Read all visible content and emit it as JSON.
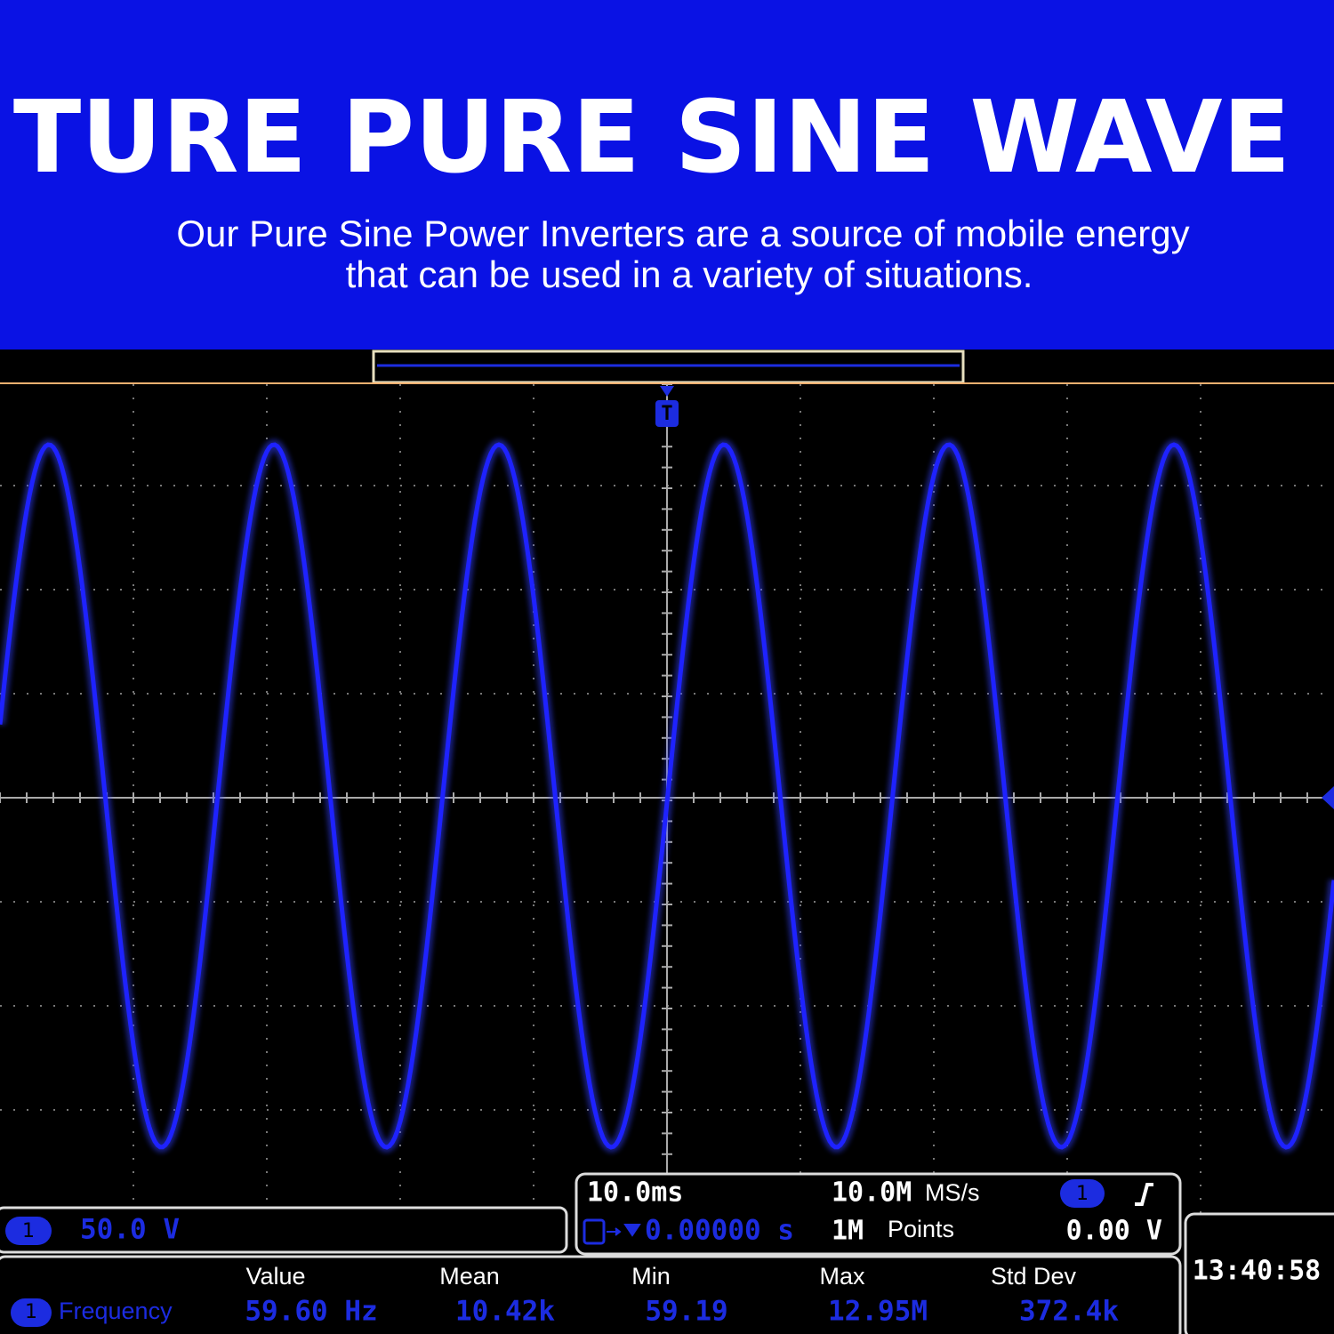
{
  "header": {
    "title": "TURE PURE SINE WAVE",
    "subtitle": [
      "Our Pure Sine Power Inverters are a source of mobile energy",
      "that can be used in a variety of situations."
    ]
  },
  "scope": {
    "trigger_marker": "T",
    "channel": {
      "number": "1",
      "scale": "50.0 V"
    },
    "timebase": {
      "time_per_div": "10.0ms",
      "sample_rate": "10.0M",
      "sample_rate_unit": "MS/s",
      "trigger_channel": "1",
      "trigger_position": "0.00000 s",
      "record_length": "1M",
      "record_length_unit": "Points",
      "trigger_level": "0.00 V"
    },
    "clock": "13:40:58",
    "measurements": {
      "columns": [
        "Value",
        "Mean",
        "Min",
        "Max",
        "Std Dev"
      ],
      "rows": [
        [
          "1",
          "Frequency",
          "59.60 Hz",
          "10.42k",
          "59.19",
          "12.95M",
          "372.4k"
        ]
      ]
    }
  }
}
